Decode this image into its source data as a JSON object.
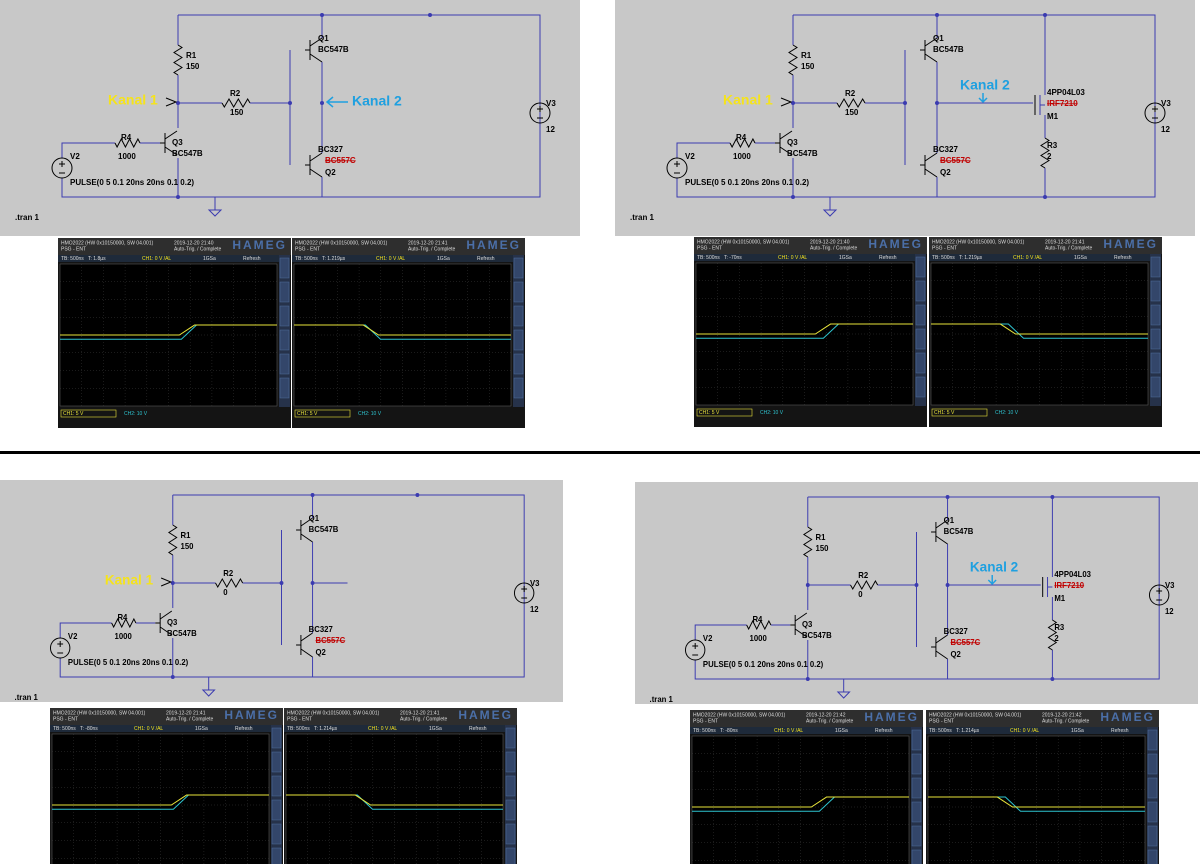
{
  "scope_common": {
    "model": "HMO2022 (HW 0x10150000, SW 04.001)",
    "mode": "PSG - ENT",
    "trigger": "Auto-Trig. / Complete",
    "brand": "HAMEG",
    "timebase": "TB: 500ns",
    "trigger_level": "CH1: 0 V /AL",
    "sample_rate": "1GSa",
    "acquisition": "Refresh",
    "ch1_scale": "CH1: 5 V",
    "ch2_scale": "CH2: 10 V"
  },
  "panels": [
    {
      "schematic": {
        "r1": {
          "ref": "R1",
          "value": "150"
        },
        "r2": {
          "ref": "R2",
          "value": "150"
        },
        "r4": {
          "ref": "R4",
          "value": "1000"
        },
        "q1": {
          "ref": "Q1",
          "value": "BC547B"
        },
        "q3": {
          "ref": "Q3",
          "value": "BC547B"
        },
        "q2": {
          "ref": "Q2",
          "value": "BC327",
          "struck": "BC557C"
        },
        "v2": {
          "ref": "V2",
          "value": "PULSE(0 5 0.1 20ns 20ns 0.1 0.2)"
        },
        "v3": {
          "ref": "V3",
          "value": "12"
        },
        "directive": ".tran 1",
        "kanal1": "Kanal 1",
        "kanal2": "Kanal 2"
      },
      "scopes": [
        {
          "date": "2019-12-20 21:40",
          "time_offset": "T: 1.8µs"
        },
        {
          "date": "2019-12-20 21:41",
          "time_offset": "T: 1.219µs"
        }
      ]
    },
    {
      "schematic": {
        "r1": {
          "ref": "R1",
          "value": "150"
        },
        "r2": {
          "ref": "R2",
          "value": "150"
        },
        "r4": {
          "ref": "R4",
          "value": "1000"
        },
        "q1": {
          "ref": "Q1",
          "value": "BC547B"
        },
        "q3": {
          "ref": "Q3",
          "value": "BC547B"
        },
        "q2": {
          "ref": "Q2",
          "value": "BC327",
          "struck": "BC557C"
        },
        "v2": {
          "ref": "V2",
          "value": "PULSE(0 5 0.1 20ns 20ns 0.1 0.2)"
        },
        "v3": {
          "ref": "V3",
          "value": "12"
        },
        "m1": {
          "ref": "M1",
          "value": "4PP04L03",
          "struck": "IRF7210"
        },
        "r3": {
          "ref": "R3",
          "value": "2"
        },
        "directive": ".tran 1",
        "kanal1": "Kanal 1",
        "kanal2": "Kanal 2"
      },
      "scopes": [
        {
          "date": "2019-12-20 21:40",
          "time_offset": "T: -70ns"
        },
        {
          "date": "2019-12-20 21:41",
          "time_offset": "T: 1.219µs"
        }
      ]
    },
    {
      "schematic": {
        "r1": {
          "ref": "R1",
          "value": "150"
        },
        "r2": {
          "ref": "R2",
          "value": "0"
        },
        "r4": {
          "ref": "R4",
          "value": "1000"
        },
        "q1": {
          "ref": "Q1",
          "value": "BC547B"
        },
        "q3": {
          "ref": "Q3",
          "value": "BC547B"
        },
        "q2": {
          "ref": "Q2",
          "value": "BC327",
          "struck": "BC557C"
        },
        "v2": {
          "ref": "V2",
          "value": "PULSE(0 5 0.1 20ns 20ns 0.1 0.2)"
        },
        "v3": {
          "ref": "V3",
          "value": "12"
        },
        "directive": ".tran 1",
        "kanal1": "Kanal 1"
      },
      "scopes": [
        {
          "date": "2019-12-20 21:41",
          "time_offset": "T: -80ns"
        },
        {
          "date": "2019-12-20 21:41",
          "time_offset": "T: 1.214µs"
        }
      ]
    },
    {
      "schematic": {
        "r1": {
          "ref": "R1",
          "value": "150"
        },
        "r2": {
          "ref": "R2",
          "value": "0"
        },
        "r4": {
          "ref": "R4",
          "value": "1000"
        },
        "q1": {
          "ref": "Q1",
          "value": "BC547B"
        },
        "q3": {
          "ref": "Q3",
          "value": "BC547B"
        },
        "q2": {
          "ref": "Q2",
          "value": "BC327",
          "struck": "BC557C"
        },
        "v2": {
          "ref": "V2",
          "value": "PULSE(0 5 0.1 20ns 20ns 0.1 0.2)"
        },
        "v3": {
          "ref": "V3",
          "value": "12"
        },
        "m1": {
          "ref": "M1",
          "value": "4PP04L03",
          "struck": "IRF7210"
        },
        "r3": {
          "ref": "R3",
          "value": "2"
        },
        "directive": ".tran 1",
        "kanal2": "Kanal 2"
      },
      "scopes": [
        {
          "date": "2019-12-20 21:42",
          "time_offset": "T: -80ns"
        },
        {
          "date": "2019-12-20 21:42",
          "time_offset": "T: 1.214µs"
        }
      ]
    }
  ]
}
